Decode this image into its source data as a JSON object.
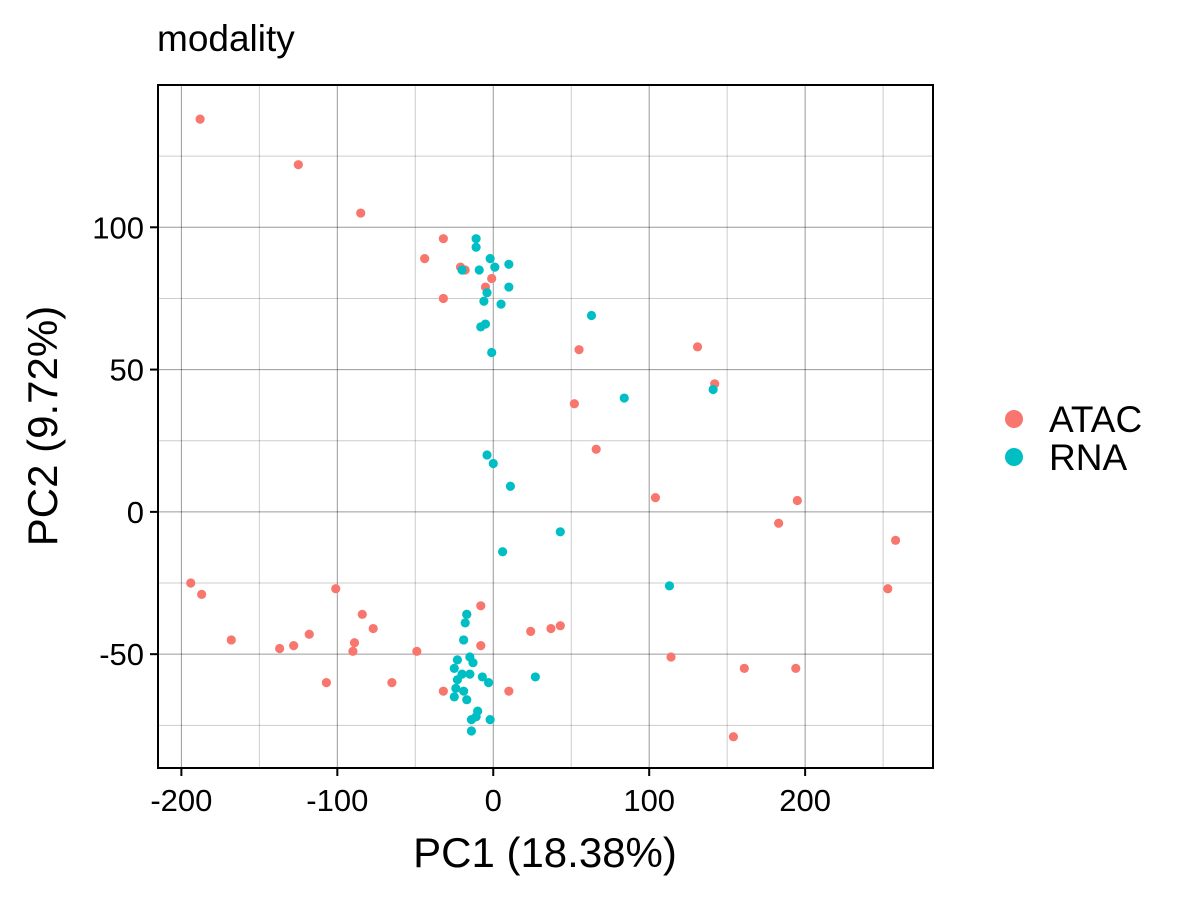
{
  "chart_data": {
    "type": "scatter",
    "title": "modality",
    "xlabel": "PC1 (18.38%)",
    "ylabel": "PC2 (9.72%)",
    "xlim": [
      -215,
      282
    ],
    "ylim": [
      -90,
      150
    ],
    "x_major_ticks": [
      -200,
      -100,
      0,
      100,
      200
    ],
    "x_tick_labels": [
      "-200",
      "-100",
      "0",
      "100",
      "200"
    ],
    "x_minor_ticks": [
      -150,
      -50,
      50,
      150,
      250
    ],
    "y_major_ticks": [
      -50,
      0,
      50,
      100
    ],
    "y_tick_labels": [
      "-50",
      "0",
      "50",
      "100"
    ],
    "y_minor_ticks": [
      -75,
      -25,
      25,
      75,
      125
    ],
    "grid": true,
    "legend_position": "right",
    "series": [
      {
        "name": "ATAC",
        "color": "#F8766D",
        "points": [
          [
            -188,
            138
          ],
          [
            -125,
            122
          ],
          [
            -85,
            105
          ],
          [
            -32,
            96
          ],
          [
            -44,
            89
          ],
          [
            -18,
            85
          ],
          [
            -21,
            86
          ],
          [
            -1,
            82
          ],
          [
            -5,
            79
          ],
          [
            -32,
            75
          ],
          [
            55,
            57
          ],
          [
            131,
            58
          ],
          [
            142,
            45
          ],
          [
            52,
            38
          ],
          [
            66,
            22
          ],
          [
            104,
            5
          ],
          [
            195,
            4
          ],
          [
            183,
            -4
          ],
          [
            258,
            -10
          ],
          [
            -194,
            -25
          ],
          [
            -187,
            -29
          ],
          [
            -101,
            -27
          ],
          [
            253,
            -27
          ],
          [
            -8,
            -33
          ],
          [
            -17,
            -36
          ],
          [
            -84,
            -36
          ],
          [
            -77,
            -41
          ],
          [
            -118,
            -43
          ],
          [
            -168,
            -45
          ],
          [
            -89,
            -46
          ],
          [
            -128,
            -47
          ],
          [
            -137,
            -48
          ],
          [
            -90,
            -49
          ],
          [
            -49,
            -49
          ],
          [
            -8,
            -47
          ],
          [
            24,
            -42
          ],
          [
            37,
            -41
          ],
          [
            43,
            -40
          ],
          [
            114,
            -51
          ],
          [
            161,
            -55
          ],
          [
            194,
            -55
          ],
          [
            -107,
            -60
          ],
          [
            -65,
            -60
          ],
          [
            -32,
            -63
          ],
          [
            10,
            -63
          ],
          [
            154,
            -79
          ]
        ]
      },
      {
        "name": "RNA",
        "color": "#00BFC4",
        "points": [
          [
            -11,
            96
          ],
          [
            -11,
            93
          ],
          [
            -2,
            89
          ],
          [
            -20,
            85
          ],
          [
            -9,
            85
          ],
          [
            1,
            86
          ],
          [
            10,
            87
          ],
          [
            -4,
            77
          ],
          [
            -6,
            74
          ],
          [
            10,
            79
          ],
          [
            5,
            73
          ],
          [
            -5,
            66
          ],
          [
            -8,
            65
          ],
          [
            -1,
            56
          ],
          [
            63,
            69
          ],
          [
            84,
            40
          ],
          [
            141,
            43
          ],
          [
            -4,
            20
          ],
          [
            0,
            17
          ],
          [
            11,
            9
          ],
          [
            43,
            -7
          ],
          [
            6,
            -14
          ],
          [
            113,
            -26
          ],
          [
            -17,
            -36
          ],
          [
            -18,
            -39
          ],
          [
            -19,
            -45
          ],
          [
            -15,
            -51
          ],
          [
            -13,
            -53
          ],
          [
            -23,
            -52
          ],
          [
            -25,
            -55
          ],
          [
            -20,
            -57
          ],
          [
            -15,
            -57
          ],
          [
            -23,
            -59
          ],
          [
            -7,
            -58
          ],
          [
            -3,
            -60
          ],
          [
            27,
            -58
          ],
          [
            -24,
            -62
          ],
          [
            -19,
            -63
          ],
          [
            -25,
            -65
          ],
          [
            -17,
            -66
          ],
          [
            -10,
            -70
          ],
          [
            -11,
            -72
          ],
          [
            -14,
            -73
          ],
          [
            -2,
            -73
          ],
          [
            -14,
            -77
          ]
        ]
      }
    ]
  }
}
